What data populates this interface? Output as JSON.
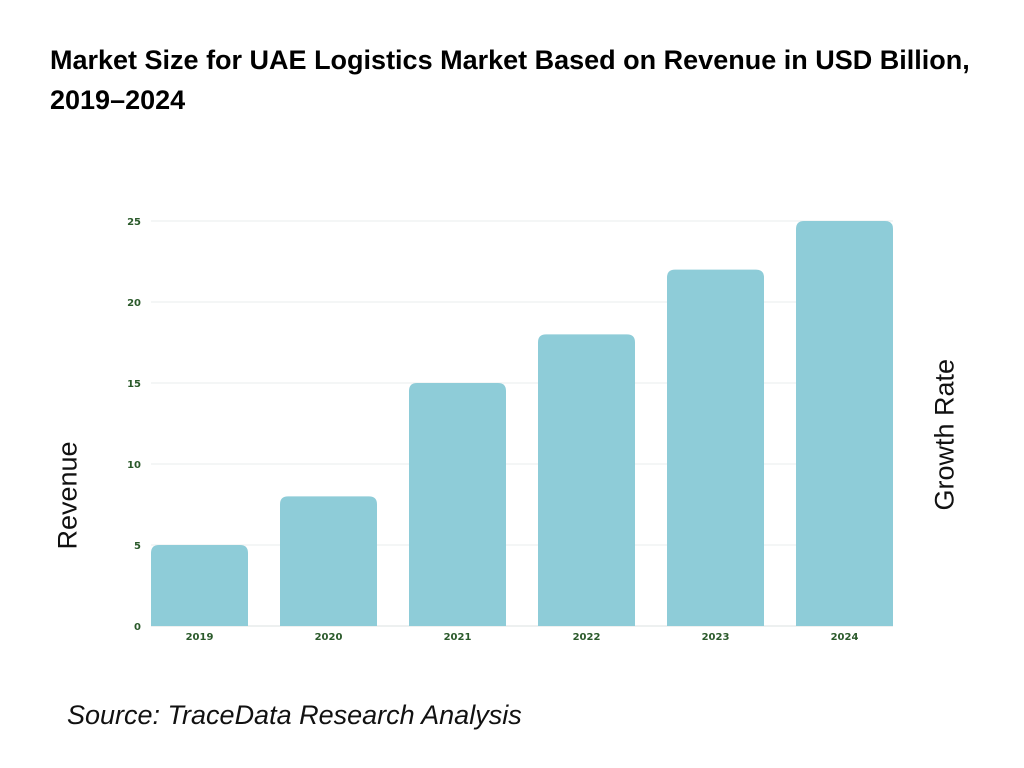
{
  "chart_data": {
    "type": "bar",
    "title": "Market Size for UAE Logistics Market Based on Revenue in USD Billion, 2019–2024",
    "categories": [
      "2019",
      "2020",
      "2021",
      "2022",
      "2023",
      "2024"
    ],
    "values": [
      5,
      8,
      15,
      18,
      22,
      25
    ],
    "ylabel": "Revenue",
    "y2label": "Growth Rate",
    "xlabel": "",
    "ylim": [
      0,
      25
    ],
    "yticks": [
      0,
      5,
      10,
      15,
      20,
      25
    ],
    "grid": true,
    "bar_color": "#8ECCD8",
    "tick_color": "#2B5A2B"
  },
  "source": "Source: TraceData Research Analysis"
}
